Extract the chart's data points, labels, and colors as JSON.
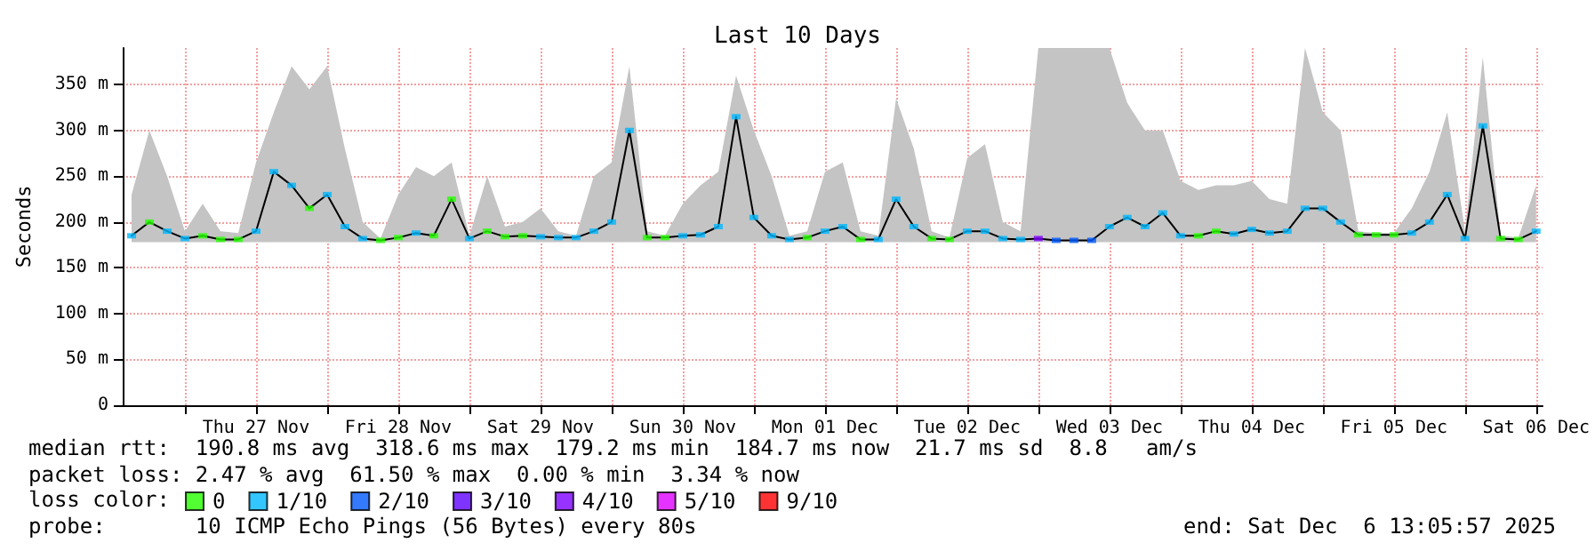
{
  "chart_data": {
    "type": "line",
    "title": "Last 10 Days",
    "ylabel": "Seconds",
    "legend_title": "loss color:",
    "legend": "bottom",
    "grid": true,
    "line_style": "solid",
    "xlim": [
      "2025-11-26T13:30",
      "2025-12-06T13:05"
    ],
    "xticks": [
      {
        "value": "2025-11-27T00:00",
        "label": null
      },
      {
        "value": "2025-11-27T12:00",
        "label": "Thu 27 Nov"
      },
      {
        "value": "2025-11-28T00:00",
        "label": null
      },
      {
        "value": "2025-11-28T12:00",
        "label": "Fri 28 Nov"
      },
      {
        "value": "2025-11-29T00:00",
        "label": null
      },
      {
        "value": "2025-11-29T12:00",
        "label": "Sat 29 Nov"
      },
      {
        "value": "2025-11-30T00:00",
        "label": null
      },
      {
        "value": "2025-11-30T12:00",
        "label": "Sun 30 Nov"
      },
      {
        "value": "2025-12-01T00:00",
        "label": null
      },
      {
        "value": "2025-12-01T12:00",
        "label": "Mon 01 Dec"
      },
      {
        "value": "2025-12-02T00:00",
        "label": null
      },
      {
        "value": "2025-12-02T12:00",
        "label": "Tue 02 Dec"
      },
      {
        "value": "2025-12-03T00:00",
        "label": null
      },
      {
        "value": "2025-12-03T12:00",
        "label": "Wed 03 Dec"
      },
      {
        "value": "2025-12-04T00:00",
        "label": null
      },
      {
        "value": "2025-12-04T12:00",
        "label": "Thu 04 Dec"
      },
      {
        "value": "2025-12-05T00:00",
        "label": null
      },
      {
        "value": "2025-12-05T12:00",
        "label": "Fri 05 Dec"
      },
      {
        "value": "2025-12-06T00:00",
        "label": null
      },
      {
        "value": "2025-12-06T12:00",
        "label": "Sat 06 Dec"
      }
    ],
    "ylim": [
      0,
      390
    ],
    "yticks": [
      0,
      {
        "value": 50,
        "label": "50 m"
      },
      {
        "value": 100,
        "label": "100 m"
      },
      {
        "value": 150,
        "label": "150 m"
      },
      {
        "value": 200,
        "label": "200 m"
      },
      {
        "value": 250,
        "label": "250 m"
      },
      {
        "value": 300,
        "label": "300 m"
      },
      {
        "value": 350,
        "label": "350 m"
      }
    ],
    "x": [
      "2025-11-26T15:00",
      "2025-11-26T18:00",
      "2025-11-26T21:00",
      "2025-11-27T00:00",
      "2025-11-27T03:00",
      "2025-11-27T06:00",
      "2025-11-27T09:00",
      "2025-11-27T12:00",
      "2025-11-27T15:00",
      "2025-11-27T18:00",
      "2025-11-27T21:00",
      "2025-11-28T00:00",
      "2025-11-28T03:00",
      "2025-11-28T06:00",
      "2025-11-28T09:00",
      "2025-11-28T12:00",
      "2025-11-28T15:00",
      "2025-11-28T18:00",
      "2025-11-28T21:00",
      "2025-11-29T00:00",
      "2025-11-29T03:00",
      "2025-11-29T06:00",
      "2025-11-29T09:00",
      "2025-11-29T12:00",
      "2025-11-29T15:00",
      "2025-11-29T18:00",
      "2025-11-29T21:00",
      "2025-11-30T00:00",
      "2025-11-30T03:00",
      "2025-11-30T06:00",
      "2025-11-30T09:00",
      "2025-11-30T12:00",
      "2025-11-30T15:00",
      "2025-11-30T18:00",
      "2025-11-30T21:00",
      "2025-12-01T00:00",
      "2025-12-01T03:00",
      "2025-12-01T06:00",
      "2025-12-01T09:00",
      "2025-12-01T12:00",
      "2025-12-01T15:00",
      "2025-12-01T18:00",
      "2025-12-01T21:00",
      "2025-12-02T00:00",
      "2025-12-02T03:00",
      "2025-12-02T06:00",
      "2025-12-02T09:00",
      "2025-12-02T12:00",
      "2025-12-02T15:00",
      "2025-12-02T18:00",
      "2025-12-02T21:00",
      "2025-12-03T00:00",
      "2025-12-03T03:00",
      "2025-12-03T06:00",
      "2025-12-03T09:00",
      "2025-12-03T12:00",
      "2025-12-03T15:00",
      "2025-12-03T18:00",
      "2025-12-03T21:00",
      "2025-12-04T00:00",
      "2025-12-04T03:00",
      "2025-12-04T06:00",
      "2025-12-04T09:00",
      "2025-12-04T12:00",
      "2025-12-04T15:00",
      "2025-12-04T18:00",
      "2025-12-04T21:00",
      "2025-12-05T00:00",
      "2025-12-05T03:00",
      "2025-12-05T06:00",
      "2025-12-05T09:00",
      "2025-12-05T12:00",
      "2025-12-05T15:00",
      "2025-12-05T18:00",
      "2025-12-05T21:00",
      "2025-12-06T00:00",
      "2025-12-06T03:00",
      "2025-12-06T06:00",
      "2025-12-06T09:00",
      "2025-12-06T12:00"
    ],
    "series": [
      {
        "color": "#000000",
        "values": [
          185,
          200,
          190,
          182,
          185,
          181,
          181,
          190,
          255,
          240,
          215,
          230,
          195,
          182,
          180,
          183,
          188,
          185,
          225,
          182,
          190,
          184,
          185,
          184,
          183,
          183,
          190,
          200,
          300,
          183,
          183,
          185,
          186,
          195,
          315,
          205,
          185,
          181,
          183,
          190,
          195,
          181,
          181,
          225,
          195,
          182,
          181,
          190,
          190,
          182,
          181,
          182,
          180,
          180,
          180,
          195,
          205,
          195,
          210,
          185,
          185,
          190,
          187,
          192,
          188,
          190,
          215,
          215,
          200,
          186,
          186,
          186,
          188,
          200,
          230,
          182,
          305,
          182,
          181,
          190
        ],
        "lower": [
          178,
          178,
          178,
          178,
          178,
          178,
          178,
          178,
          178,
          178,
          178,
          178,
          178,
          178,
          178,
          178,
          178,
          178,
          178,
          178,
          178,
          178,
          178,
          178,
          178,
          178,
          178,
          178,
          178,
          178,
          178,
          178,
          178,
          178,
          178,
          178,
          178,
          178,
          178,
          178,
          178,
          178,
          178,
          178,
          178,
          178,
          178,
          178,
          178,
          178,
          178,
          178,
          178,
          178,
          178,
          178,
          178,
          178,
          178,
          178,
          178,
          178,
          178,
          178,
          178,
          178,
          178,
          178,
          178,
          178,
          178,
          178,
          178,
          178,
          178,
          178,
          178,
          178,
          178,
          178
        ],
        "upper": [
          230,
          300,
          250,
          190,
          220,
          190,
          188,
          265,
          320,
          370,
          345,
          370,
          280,
          200,
          182,
          230,
          260,
          250,
          265,
          185,
          250,
          195,
          200,
          215,
          190,
          185,
          250,
          265,
          370,
          190,
          185,
          220,
          240,
          255,
          360,
          300,
          250,
          185,
          190,
          255,
          265,
          190,
          185,
          335,
          280,
          190,
          183,
          270,
          285,
          200,
          190,
          390,
          390,
          390,
          390,
          390,
          330,
          300,
          300,
          245,
          235,
          240,
          240,
          245,
          225,
          220,
          390,
          320,
          300,
          190,
          188,
          188,
          215,
          255,
          320,
          190,
          380,
          185,
          183,
          240
        ]
      },
      {
        "type": "scatter",
        "name": "0",
        "color": "#26ff00",
        "marker": "square",
        "values": [
          null,
          200,
          null,
          null,
          185,
          181,
          181,
          null,
          null,
          null,
          215,
          null,
          null,
          null,
          180,
          183,
          null,
          185,
          225,
          null,
          190,
          184,
          185,
          null,
          null,
          null,
          null,
          null,
          null,
          183,
          183,
          null,
          null,
          null,
          null,
          null,
          null,
          null,
          183,
          null,
          null,
          181,
          null,
          null,
          null,
          182,
          181,
          null,
          null,
          null,
          null,
          null,
          null,
          null,
          null,
          null,
          null,
          null,
          null,
          null,
          185,
          190,
          null,
          null,
          null,
          null,
          null,
          null,
          null,
          186,
          186,
          186,
          null,
          null,
          null,
          null,
          null,
          182,
          181,
          null
        ]
      },
      {
        "type": "scatter",
        "name": "1/10",
        "color": "#00b8ff",
        "marker": "square",
        "values": [
          185,
          null,
          190,
          182,
          null,
          null,
          null,
          190,
          255,
          240,
          null,
          230,
          195,
          182,
          null,
          null,
          188,
          null,
          null,
          182,
          null,
          null,
          null,
          184,
          183,
          183,
          190,
          200,
          300,
          null,
          null,
          185,
          186,
          195,
          315,
          205,
          185,
          181,
          null,
          190,
          195,
          null,
          181,
          225,
          195,
          null,
          null,
          190,
          190,
          182,
          181,
          null,
          null,
          null,
          null,
          195,
          205,
          195,
          210,
          185,
          null,
          null,
          187,
          192,
          188,
          190,
          215,
          215,
          200,
          null,
          null,
          null,
          188,
          200,
          230,
          182,
          305,
          null,
          null,
          190
        ]
      },
      {
        "type": "scatter",
        "name": "2/10",
        "color": "#0059ff",
        "marker": "square",
        "x": [
          "2025-12-03T03:00",
          "2025-12-03T06:00",
          "2025-12-03T09:00"
        ],
        "values": [
          180,
          180,
          180
        ]
      },
      {
        "type": "scatter",
        "name": "3/10",
        "color": "#5e00ff",
        "marker": "square",
        "values": [
          null,
          null,
          null,
          null,
          null,
          null,
          null,
          null,
          null,
          null,
          null,
          null,
          null,
          null,
          null,
          null,
          null,
          null,
          null,
          null,
          null,
          null,
          null,
          null,
          null,
          null,
          null,
          null,
          null,
          null,
          null,
          null,
          null,
          null,
          null,
          null,
          null,
          null,
          null,
          null,
          null,
          null,
          null,
          null,
          null,
          null,
          null,
          null,
          null,
          null,
          null,
          null,
          null,
          null,
          null,
          null,
          null,
          null,
          null,
          null,
          null,
          null,
          null,
          null,
          null,
          null,
          null,
          null,
          null,
          null,
          null,
          null,
          null,
          null,
          null,
          null,
          null,
          null,
          null,
          null
        ]
      },
      {
        "type": "scatter",
        "name": "4/10",
        "color": "#7e00ff",
        "marker": "square",
        "x": [
          "2025-12-03T00:00"
        ],
        "values": [
          182
        ]
      },
      {
        "type": "scatter",
        "name": "5/10",
        "color": "#dd00ff",
        "marker": "square",
        "values": [
          null,
          null,
          null,
          null,
          null,
          null,
          null,
          null,
          null,
          null,
          null,
          null,
          null,
          null,
          null,
          null,
          null,
          null,
          null,
          null,
          null,
          null,
          null,
          null,
          null,
          null,
          null,
          null,
          null,
          null,
          null,
          null,
          null,
          null,
          null,
          null,
          null,
          null,
          null,
          null,
          null,
          null,
          null,
          null,
          null,
          null,
          null,
          null,
          null,
          null,
          null,
          null,
          null,
          null,
          null,
          null,
          null,
          null,
          null,
          null,
          null,
          null,
          null,
          null,
          null,
          null,
          null,
          null,
          null,
          null,
          null,
          null,
          null,
          null,
          null,
          null,
          null,
          null,
          null,
          null
        ]
      },
      {
        "type": "scatter",
        "name": "9/10",
        "color": "#ff0000",
        "marker": "square",
        "values": [
          null,
          null,
          null,
          null,
          null,
          null,
          null,
          null,
          null,
          null,
          null,
          null,
          null,
          null,
          null,
          null,
          null,
          null,
          null,
          null,
          null,
          null,
          null,
          null,
          null,
          null,
          null,
          null,
          null,
          null,
          null,
          null,
          null,
          null,
          null,
          null,
          null,
          null,
          null,
          null,
          null,
          null,
          null,
          null,
          null,
          null,
          null,
          null,
          null,
          null,
          null,
          null,
          null,
          null,
          null,
          null,
          null,
          null,
          null,
          null,
          null,
          null,
          null,
          null,
          null,
          null,
          null,
          null,
          null,
          null,
          null,
          null,
          null,
          null,
          null,
          null,
          null,
          null,
          null,
          null
        ]
      }
    ],
    "annotations": [
      "median rtt:  190.8 ms avg  318.6 ms max  179.2 ms min  184.7 ms now  21.7 ms sd  8.8   am/s",
      "packet loss: 2.47 % avg  61.50 % max  0.00 % min  3.34 % now",
      "probe:       10 ICMP Echo Pings (56 Bytes) every 80s",
      "end: Sat Dec  6 13:05:57 2025"
    ]
  }
}
